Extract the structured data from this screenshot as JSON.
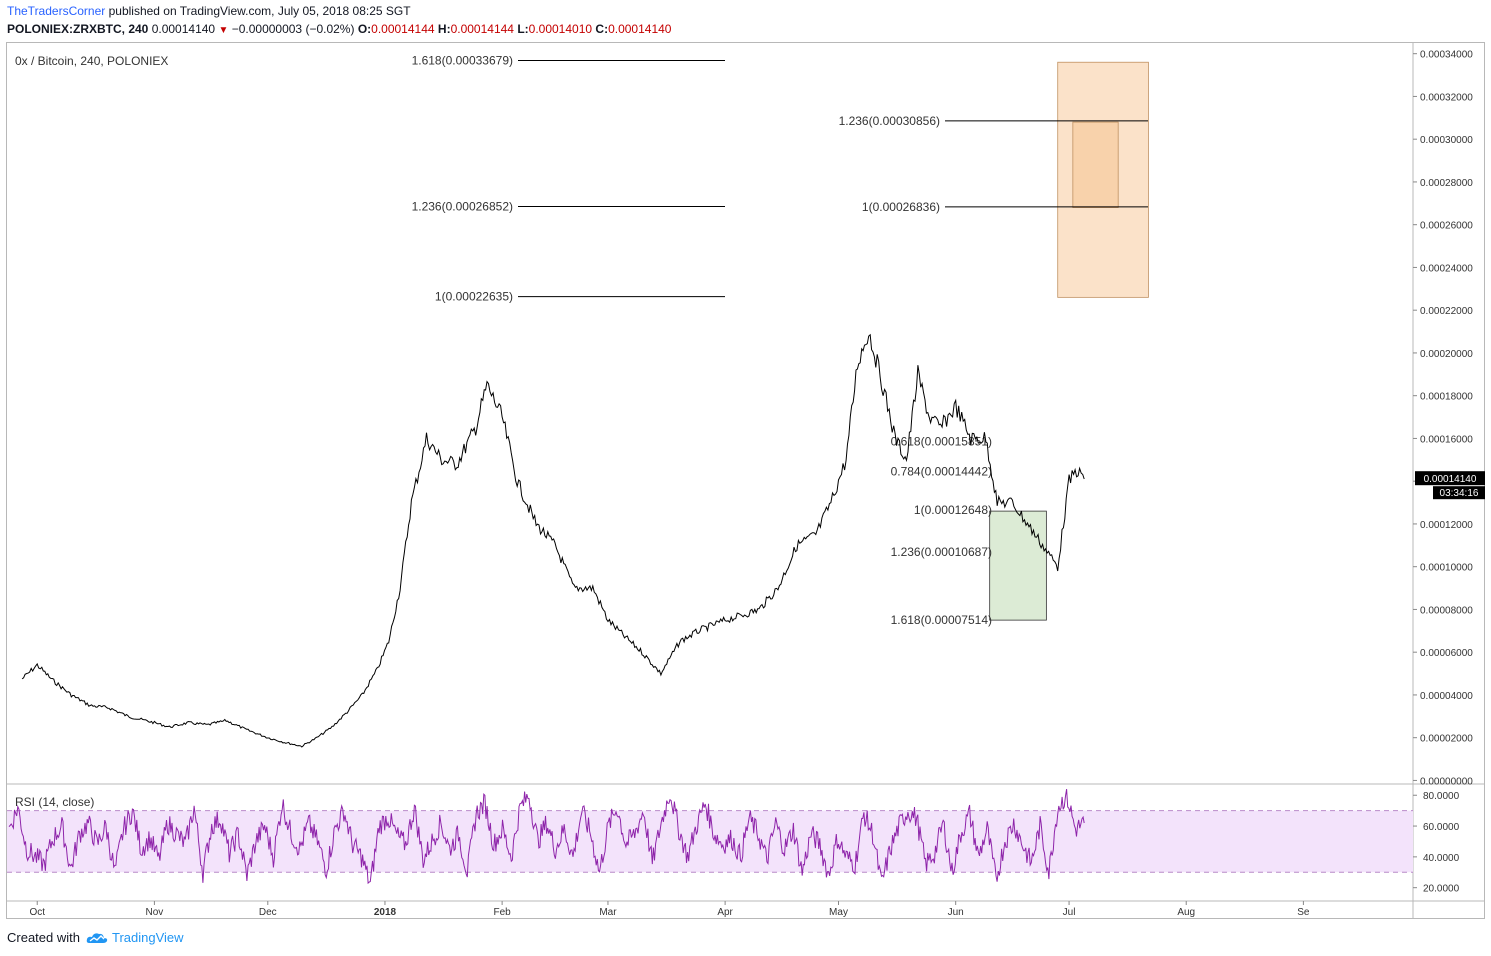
{
  "header": {
    "author": "TheTradersCorner",
    "published": " published on TradingView.com, July 05, 2018 08:25 SGT",
    "symbol": "POLONIEX:ZRXBTC, 240",
    "last": "0.00014140",
    "change": "−0.00000003 (−0.02%)",
    "open_label": "O:",
    "open": "0.00014144",
    "high_label": "H:",
    "high": "0.00014144",
    "low_label": "L:",
    "low": "0.00014010",
    "close_label": "C:",
    "close": "0.00014140"
  },
  "legend_main": "0x / Bitcoin, 240, POLONIEX",
  "legend_rsi": "RSI (14, close)",
  "footer": {
    "created": "Created with",
    "brand": "TradingView"
  },
  "colors": {
    "price_line": "#000000",
    "rsi_line": "#8e24aa",
    "rsi_band": "#f3e3fb",
    "target_box": "#fbe2c9",
    "target_inner": "#f8d2ab",
    "support_box": "#dcebd5",
    "scale_tag": "#000000"
  },
  "chart_data": [
    {
      "type": "line",
      "series": [
        {
          "name": "0x / Bitcoin, 240, POLONIEX",
          "x": [
            "2017-09-27",
            "2017-10-01",
            "2017-10-05",
            "2017-10-10",
            "2017-10-15",
            "2017-10-20",
            "2017-10-25",
            "2017-11-01",
            "2017-11-05",
            "2017-11-10",
            "2017-11-15",
            "2017-11-20",
            "2017-11-25",
            "2017-12-01",
            "2017-12-05",
            "2017-12-10",
            "2017-12-14",
            "2017-12-18",
            "2017-12-22",
            "2017-12-26",
            "2017-12-30",
            "2018-01-02",
            "2018-01-05",
            "2018-01-08",
            "2018-01-12",
            "2018-01-16",
            "2018-01-20",
            "2018-01-25",
            "2018-01-28",
            "2018-02-01",
            "2018-02-05",
            "2018-02-10",
            "2018-02-15",
            "2018-02-20",
            "2018-02-25",
            "2018-03-01",
            "2018-03-05",
            "2018-03-10",
            "2018-03-15",
            "2018-03-20",
            "2018-03-25",
            "2018-04-01",
            "2018-04-05",
            "2018-04-10",
            "2018-04-15",
            "2018-04-20",
            "2018-04-25",
            "2018-04-29",
            "2018-05-03",
            "2018-05-06",
            "2018-05-09",
            "2018-05-12",
            "2018-05-16",
            "2018-05-19",
            "2018-05-22",
            "2018-05-25",
            "2018-05-28",
            "2018-06-01",
            "2018-06-05",
            "2018-06-09",
            "2018-06-12",
            "2018-06-16",
            "2018-06-20",
            "2018-06-24",
            "2018-06-28",
            "2018-07-01",
            "2018-07-03",
            "2018-07-05"
          ],
          "values": [
            4.75e-05,
            5.4e-05,
            4.7e-05,
            4e-05,
            3.5e-05,
            3.4e-05,
            3e-05,
            2.7e-05,
            2.5e-05,
            2.7e-05,
            2.6e-05,
            2.8e-05,
            2.4e-05,
            2e-05,
            1.8e-05,
            1.6e-05,
            2e-05,
            2.5e-05,
            3.2e-05,
            4e-05,
            5.2e-05,
            6.5e-05,
            9e-05,
            0.00013,
            0.00016,
            0.00015,
            0.000148,
            0.000165,
            0.000185,
            0.00017,
            0.00014,
            0.00012,
            0.00011,
            9e-05,
            9e-05,
            7.5e-05,
            6.8e-05,
            6e-05,
            5e-05,
            6.5e-05,
            7e-05,
            7.5e-05,
            7.7e-05,
            8e-05,
            9e-05,
            0.00011,
            0.000115,
            0.00013,
            0.00015,
            0.000195,
            0.00021,
            0.00019,
            0.00016,
            0.00015,
            0.00019,
            0.00017,
            0.000165,
            0.000175,
            0.00016,
            0.00016,
            0.00013,
            0.00013,
            0.00012,
            0.00011,
            0.0001,
            0.00014,
            0.000145,
            0.000141
          ]
        }
      ],
      "y_axis": {
        "min": 0,
        "max": 0.00034,
        "ticks": [
          "0.00000000",
          "0.00002000",
          "0.00004000",
          "0.00006000",
          "0.00008000",
          "0.00010000",
          "0.00012000",
          "0.00014000",
          "0.00016000",
          "0.00018000",
          "0.00020000",
          "0.00022000",
          "0.00024000",
          "0.00026000",
          "0.00028000",
          "0.00030000",
          "0.00032000",
          "0.00034000"
        ]
      },
      "x_axis": {
        "ticks": [
          "Oct",
          "Nov",
          "Dec",
          "2018",
          "Feb",
          "Mar",
          "Apr",
          "May",
          "Jun",
          "Jul",
          "Aug",
          "Se"
        ]
      },
      "last_price_tag": "0.00014140",
      "countdown_tag": "03:34:16",
      "annotations": {
        "fib_left": [
          {
            "label": "1.618(0.00033679)",
            "value": 0.00033679
          },
          {
            "label": "1.236(0.00026852)",
            "value": 0.00026852
          },
          {
            "label": "1(0.00022635)",
            "value": 0.00022635
          }
        ],
        "fib_right": [
          {
            "label": "1.236(0.00030856)",
            "value": 0.00030856
          },
          {
            "label": "1(0.00026836)",
            "value": 0.00026836
          }
        ],
        "fib_mid": [
          {
            "label": "0.618(0.00015851)",
            "value": 0.00015851
          },
          {
            "label": "0.784(0.00014442)",
            "value": 0.00014442
          },
          {
            "label": "1(0.00012648)",
            "value": 0.00012648
          },
          {
            "label": "1.236(0.00010687)",
            "value": 0.00010687
          },
          {
            "label": "1.618(0.00007514)",
            "value": 7.514e-05
          }
        ],
        "target_box": {
          "from": "2018-06-28",
          "to": "2018-07-22",
          "top": 0.000336,
          "bottom": 0.000226
        },
        "target_inner": {
          "from": "2018-07-02",
          "to": "2018-07-14",
          "top": 0.000308,
          "bottom": 0.000268
        },
        "support_box": {
          "from": "2018-06-10",
          "to": "2018-06-25",
          "top": 0.000126,
          "bottom": 7.5e-05
        }
      }
    },
    {
      "type": "line",
      "series": [
        {
          "name": "RSI (14, close)",
          "values": [
            58,
            72,
            45,
            40,
            35,
            52,
            60,
            32,
            55,
            62,
            48,
            60,
            30,
            58,
            70,
            45,
            52,
            38,
            62,
            55,
            48,
            72,
            30,
            60,
            65,
            42,
            55,
            28,
            50,
            60,
            40,
            75,
            55,
            45,
            62,
            50,
            32,
            58,
            70,
            48,
            40,
            22,
            60,
            66,
            54,
            48,
            72,
            38,
            50,
            62,
            45,
            55,
            30,
            68,
            75,
            48,
            58,
            40,
            72,
            80,
            50,
            62,
            45,
            58,
            40,
            70,
            55,
            30,
            60,
            72,
            48,
            55,
            70,
            36,
            62,
            82,
            58,
            40,
            60,
            75,
            55,
            48,
            52,
            40,
            65,
            55,
            38,
            62,
            45,
            58,
            30,
            55,
            48,
            28,
            52,
            40,
            35,
            68,
            55,
            22,
            45,
            60,
            70,
            65,
            35,
            42,
            62,
            30,
            55,
            68,
            40,
            58,
            25,
            50,
            62,
            48,
            36,
            60,
            30,
            72,
            80,
            58,
            62
          ]
        }
      ],
      "y_axis": {
        "min": 15,
        "max": 85,
        "ticks": [
          "20.0000",
          "40.0000",
          "60.0000",
          "80.0000"
        ],
        "band": [
          30,
          70
        ]
      }
    }
  ]
}
